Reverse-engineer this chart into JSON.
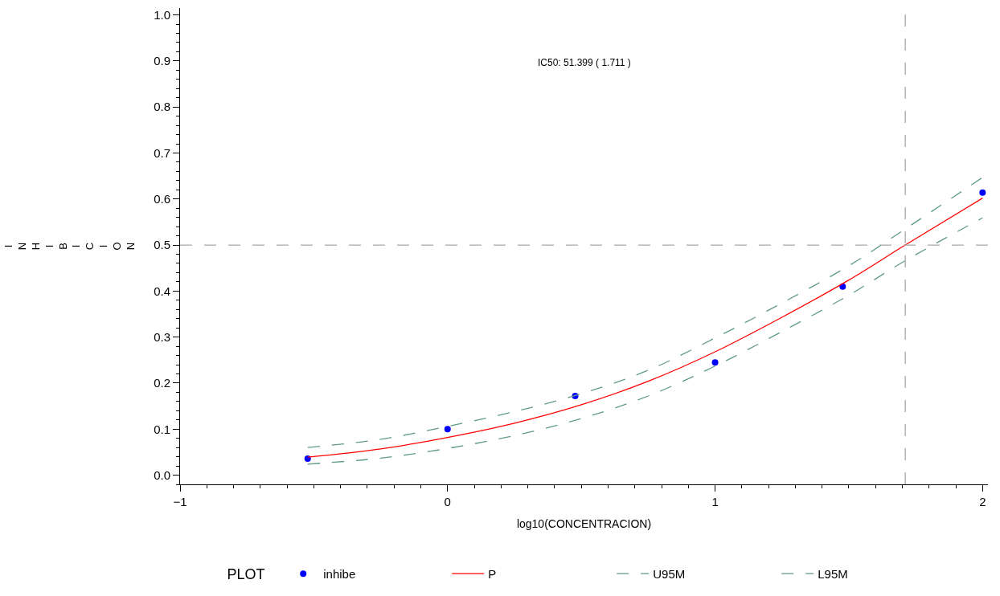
{
  "chart_data": {
    "type": "line",
    "xlabel": "log10(CONCENTRACION)",
    "ylabel": "INHIBICION",
    "legend_title": "PLOT",
    "annotations": [
      "IC50: 51.399 ( 1.711 )"
    ],
    "xlim": [
      -1,
      2.02
    ],
    "ylim": [
      -0.02,
      1.015
    ],
    "xticks": [
      {
        "value": -1,
        "label": "−1"
      },
      0,
      1,
      2
    ],
    "yticks": [
      {
        "value": 0,
        "label": "0.0"
      },
      0.1,
      0.2,
      0.3,
      0.4,
      0.5,
      0.6,
      0.7,
      0.8,
      0.9,
      {
        "value": 1,
        "label": "1.0"
      }
    ],
    "legend": "bottom",
    "ref_lines": [
      {
        "axis": "y",
        "value": 0.5,
        "color": "#a8a8a8",
        "line_style": "dashed"
      },
      {
        "axis": "x",
        "value": 1.711,
        "color": "#a8a8a8",
        "line_style": "dashed"
      }
    ],
    "series": [
      {
        "name": "inhibe",
        "type": "scatter",
        "marker": "circle",
        "color": "#0000ff",
        "x": [
          -0.523,
          0,
          0.477,
          1,
          1.477,
          2
        ],
        "values": [
          0.036,
          0.1,
          0.172,
          0.245,
          0.41,
          0.614
        ]
      },
      {
        "name": "P",
        "line_style": "solid",
        "color": "#ff0000",
        "x": [
          -0.523,
          -0.25,
          0,
          0.25,
          0.5,
          0.75,
          1,
          1.25,
          1.5,
          1.711,
          2
        ],
        "values": [
          0.039,
          0.057,
          0.082,
          0.113,
          0.153,
          0.204,
          0.268,
          0.343,
          0.424,
          0.5,
          0.602
        ]
      },
      {
        "name": "U95M",
        "line_style": "dashed",
        "color": "#5f9a8a",
        "x": [
          -0.523,
          -0.25,
          0,
          0.25,
          0.5,
          0.75,
          1,
          1.25,
          1.5,
          1.711,
          2
        ],
        "values": [
          0.06,
          0.078,
          0.106,
          0.138,
          0.177,
          0.228,
          0.298,
          0.374,
          0.455,
          0.535,
          0.647
        ]
      },
      {
        "name": "L95M",
        "line_style": "dashed",
        "color": "#5f9a8a",
        "x": [
          -0.523,
          -0.25,
          0,
          0.25,
          0.5,
          0.75,
          1,
          1.25,
          1.5,
          1.711,
          2
        ],
        "values": [
          0.024,
          0.037,
          0.058,
          0.086,
          0.123,
          0.172,
          0.237,
          0.312,
          0.391,
          0.466,
          0.559
        ]
      }
    ]
  }
}
